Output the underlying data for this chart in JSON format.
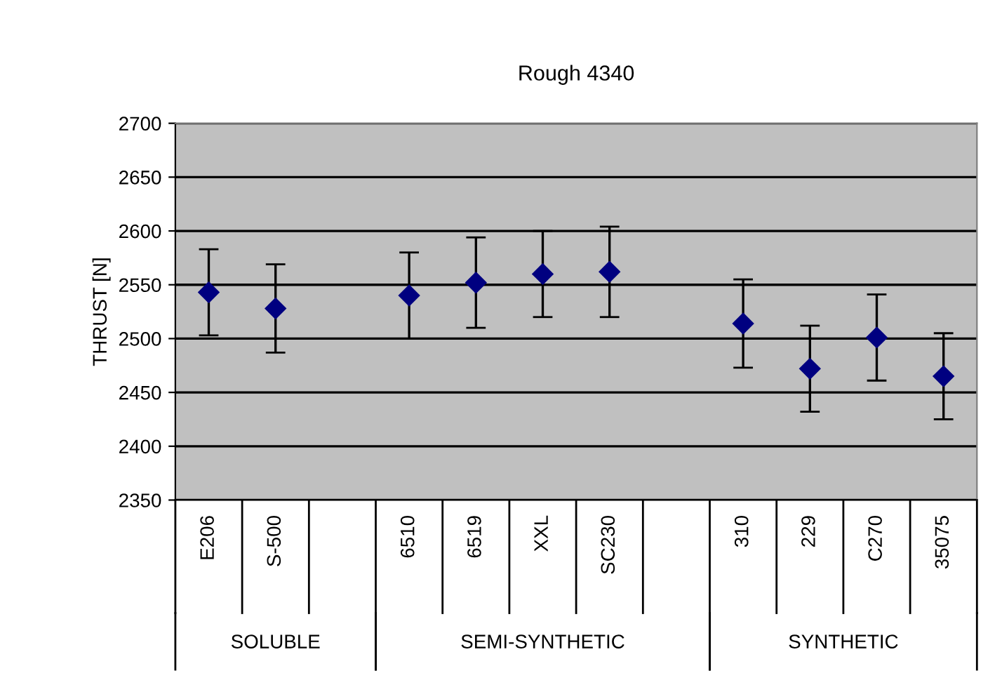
{
  "chart_data": {
    "type": "scatter",
    "title": "Rough 4340",
    "ylabel": "THRUST [N]",
    "categories": [
      "E206",
      "S-500",
      null,
      "6510",
      "6519",
      "XXL",
      "SC230",
      null,
      "310",
      "229",
      "C270",
      "35075"
    ],
    "series": [
      {
        "color": "#000080",
        "values": [
          2543,
          2528,
          null,
          2540,
          2552,
          2560,
          2562,
          null,
          2514,
          2472,
          2501,
          2465
        ],
        "errors": [
          40,
          41,
          null,
          40,
          42,
          40,
          42,
          null,
          41,
          40,
          40,
          40
        ]
      }
    ],
    "annotations": [
      "SOLUBLE",
      "SEMI-SYNTHETIC",
      "SYNTHETIC"
    ],
    "ylim": [
      2350,
      2700
    ],
    "yticks": [
      2350,
      2400,
      2450,
      2500,
      2550,
      2600,
      2650,
      2700
    ],
    "grid": "y",
    "marker": "diamond"
  }
}
